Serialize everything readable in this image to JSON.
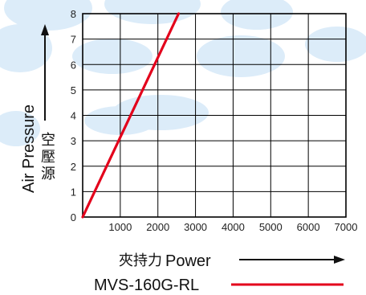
{
  "chart_data": {
    "type": "line",
    "title": "",
    "xlabel": "Power",
    "xlabel_cn": "夾持力",
    "ylabel": "Air Pressure",
    "ylabel_cn": "空壓源",
    "xlim": [
      0,
      7000
    ],
    "ylim": [
      0,
      8
    ],
    "x_ticks": [
      1000,
      2000,
      3000,
      4000,
      5000,
      6000,
      7000
    ],
    "y_ticks": [
      0,
      1,
      2,
      3,
      4,
      5,
      6,
      7,
      8
    ],
    "grid": true,
    "series": [
      {
        "name": "MVS-160G-RL",
        "color": "#e3001b",
        "x": [
          0,
          2550
        ],
        "y": [
          0,
          8
        ]
      }
    ],
    "legend_position": "bottom"
  },
  "colors": {
    "background_blobs": "#dcecf9",
    "grid": "#000000",
    "series": "#e3001b"
  }
}
